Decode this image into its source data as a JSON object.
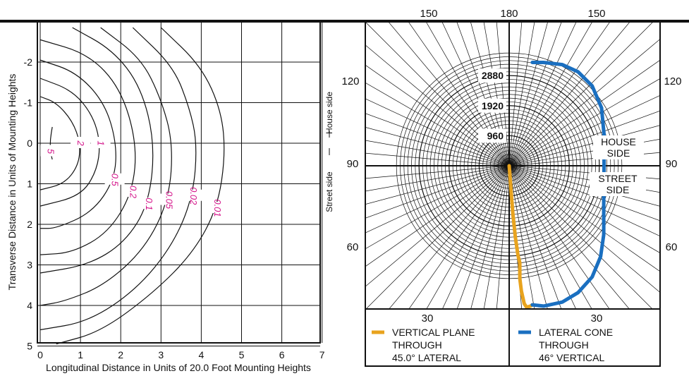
{
  "chart_data": [
    {
      "type": "contour",
      "title": "",
      "xlabel": "Longitudinal Distance in Units of 20.0 Foot Mounting Heights",
      "ylabel": "Transverse Distance in Units of Mounting Heights",
      "x_ticks": [
        "0",
        "1",
        "2",
        "3",
        "4",
        "5",
        "6",
        "7"
      ],
      "y_ticks": [
        "-2",
        "-1",
        "0",
        "1",
        "2",
        "3",
        "4",
        "5"
      ],
      "xlim": [
        0,
        7
      ],
      "ylim": [
        -2.85,
        5
      ],
      "grid": true,
      "side_labels": {
        "house": "House side",
        "street": "Street side"
      },
      "series": [
        {
          "name": "5",
          "points": [
            [
              0.3,
              -0.4
            ],
            [
              0.25,
              -0.1
            ],
            [
              0.25,
              0.2
            ],
            [
              0.3,
              0.4
            ]
          ]
        },
        {
          "name": "2",
          "points": [
            [
              0,
              -1.15
            ],
            [
              0.4,
              -1.0
            ],
            [
              0.8,
              -0.55
            ],
            [
              1.0,
              0
            ],
            [
              0.95,
              0.55
            ],
            [
              0.6,
              1.0
            ],
            [
              0,
              1.15
            ]
          ]
        },
        {
          "name": "1",
          "points": [
            [
              0,
              -1.6
            ],
            [
              0.8,
              -1.3
            ],
            [
              1.3,
              -0.7
            ],
            [
              1.5,
              0
            ],
            [
              1.4,
              0.7
            ],
            [
              1.0,
              1.3
            ],
            [
              0,
              1.55
            ]
          ]
        },
        {
          "name": "0.5",
          "points": [
            [
              0,
              -2.05
            ],
            [
              0.9,
              -1.75
            ],
            [
              1.6,
              -1.0
            ],
            [
              1.9,
              0
            ],
            [
              1.85,
              0.9
            ],
            [
              1.3,
              1.7
            ],
            [
              0.4,
              2.1
            ],
            [
              0,
              2.1
            ]
          ]
        },
        {
          "name": "0.2",
          "points": [
            [
              0,
              -2.55
            ],
            [
              1.2,
              -2.2
            ],
            [
              2.0,
              -1.35
            ],
            [
              2.4,
              0
            ],
            [
              2.3,
              1.2
            ],
            [
              1.7,
              2.2
            ],
            [
              0.8,
              2.7
            ],
            [
              0,
              2.75
            ]
          ]
        },
        {
          "name": "0.1",
          "points": [
            [
              0.8,
              -2.85
            ],
            [
              1.8,
              -2.3
            ],
            [
              2.5,
              -1.4
            ],
            [
              2.85,
              0
            ],
            [
              2.7,
              1.5
            ],
            [
              2.1,
              2.45
            ],
            [
              1.2,
              3.0
            ],
            [
              0,
              3.2
            ]
          ]
        },
        {
          "name": "0.05",
          "points": [
            [
              1.5,
              -2.85
            ],
            [
              2.5,
              -2.1
            ],
            [
              3.0,
              -1.1
            ],
            [
              3.3,
              0
            ],
            [
              3.2,
              1.4
            ],
            [
              2.6,
              2.6
            ],
            [
              1.6,
              3.5
            ],
            [
              0.6,
              3.9
            ],
            [
              0,
              4.0
            ]
          ]
        },
        {
          "name": "0.02",
          "points": [
            [
              2.3,
              -2.85
            ],
            [
              3.3,
              -1.9
            ],
            [
              3.7,
              -0.9
            ],
            [
              3.9,
              0
            ],
            [
              3.8,
              1.3
            ],
            [
              3.3,
              2.5
            ],
            [
              2.4,
              3.6
            ],
            [
              1.2,
              4.4
            ],
            [
              0,
              4.6
            ]
          ]
        },
        {
          "name": "0.01",
          "points": [
            [
              3.0,
              -2.85
            ],
            [
              4.0,
              -1.9
            ],
            [
              4.5,
              -0.8
            ],
            [
              4.6,
              0.3
            ],
            [
              4.4,
              1.6
            ],
            [
              3.8,
              2.7
            ],
            [
              2.8,
              3.7
            ],
            [
              1.5,
              4.65
            ],
            [
              0.4,
              4.95
            ]
          ]
        }
      ]
    },
    {
      "type": "polar",
      "title": "",
      "radial_ticks": [
        "960",
        "1920",
        "2880"
      ],
      "angle_labels": {
        "top_left": "150",
        "top_center": "180",
        "top_right": "150",
        "upper_left": "120",
        "upper_right": "120",
        "mid_left": "90",
        "mid_right": "90",
        "lower_left": "60",
        "lower_right": "60",
        "bottom_left": "30",
        "bottom_right": "30"
      },
      "zone_labels": {
        "house_line1": "HOUSE",
        "house_line2": "SIDE",
        "street_line1": "STREET",
        "street_line2": "SIDE"
      },
      "rmax": 3600,
      "series": [
        {
          "name": "VERTICAL PLANE THROUGH 45.0° LATERAL",
          "color": "#e8a31e",
          "points": [
            [
              0,
              0
            ],
            [
              20,
              -250
            ],
            [
              60,
              -800
            ],
            [
              120,
              -1550
            ],
            [
              200,
              -2300
            ],
            [
              280,
              -2850
            ],
            [
              340,
              -3100
            ],
            [
              340,
              -3600
            ],
            [
              390,
              -4000
            ],
            [
              480,
              -4400
            ],
            [
              560,
              -4520
            ],
            [
              620,
              -4500
            ],
            [
              680,
              -4480
            ],
            [
              740,
              -4440
            ]
          ]
        },
        {
          "name": "LATERAL CONE THROUGH 46° VERTICAL",
          "color": "#1a6fc0",
          "points": [
            [
              740,
              -4440
            ],
            [
              1100,
              -4480
            ],
            [
              1700,
              -4350
            ],
            [
              2200,
              -4050
            ],
            [
              2650,
              -3550
            ],
            [
              2920,
              -2900
            ],
            [
              3020,
              -2200
            ],
            [
              3020,
              -1000
            ],
            [
              3030,
              0
            ],
            [
              3030,
              1000
            ],
            [
              2950,
              1850
            ],
            [
              2650,
              2550
            ],
            [
              2200,
              3000
            ],
            [
              1700,
              3230
            ],
            [
              1100,
              3300
            ],
            [
              740,
              3300
            ]
          ]
        }
      ]
    }
  ],
  "legend": {
    "left_line1": "VERTICAL PLANE",
    "left_line2": "THROUGH",
    "left_line3": "45.0° LATERAL",
    "right_line1": "LATERAL CONE",
    "right_line2": "THROUGH",
    "right_line3": "46° VERTICAL"
  }
}
